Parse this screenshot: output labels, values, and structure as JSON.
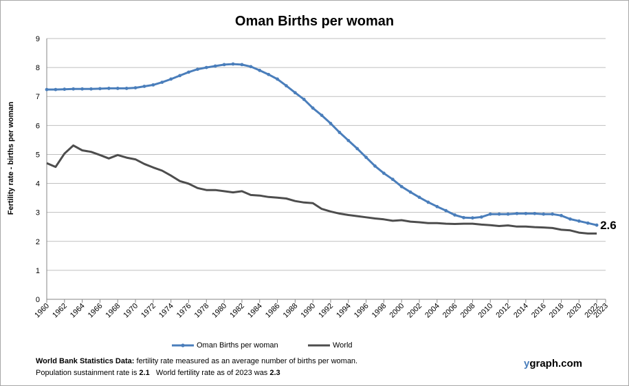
{
  "chart_data": {
    "type": "line",
    "title": "Oman Births per woman",
    "ylabel": "Fertility rate  - births per woman",
    "xlabel": "",
    "ylim": [
      0,
      9
    ],
    "xlim": [
      1960,
      2023
    ],
    "y_ticks": [
      0,
      1,
      2,
      3,
      4,
      5,
      6,
      7,
      8,
      9
    ],
    "x_ticks": [
      1960,
      1962,
      1964,
      1966,
      1968,
      1970,
      1972,
      1974,
      1976,
      1978,
      1980,
      1982,
      1984,
      1986,
      1988,
      1990,
      1992,
      1994,
      1996,
      1998,
      2000,
      2002,
      2004,
      2006,
      2008,
      2010,
      2012,
      2014,
      2016,
      2018,
      2020,
      2022,
      2023
    ],
    "grid": "horizontal",
    "legend_position": "bottom",
    "end_label": "2.6",
    "x": [
      1960,
      1961,
      1962,
      1963,
      1964,
      1965,
      1966,
      1967,
      1968,
      1969,
      1970,
      1971,
      1972,
      1973,
      1974,
      1975,
      1976,
      1977,
      1978,
      1979,
      1980,
      1981,
      1982,
      1983,
      1984,
      1985,
      1986,
      1987,
      1988,
      1989,
      1990,
      1991,
      1992,
      1993,
      1994,
      1995,
      1996,
      1997,
      1998,
      1999,
      2000,
      2001,
      2002,
      2003,
      2004,
      2005,
      2006,
      2007,
      2008,
      2009,
      2010,
      2011,
      2012,
      2013,
      2014,
      2015,
      2016,
      2017,
      2018,
      2019,
      2020,
      2021,
      2022
    ],
    "series": [
      {
        "name": "Oman Births per woman",
        "color": "#4a7ebb",
        "markers": true,
        "values": [
          7.24,
          7.24,
          7.25,
          7.26,
          7.26,
          7.26,
          7.27,
          7.28,
          7.28,
          7.28,
          7.3,
          7.35,
          7.4,
          7.49,
          7.6,
          7.72,
          7.84,
          7.94,
          8.0,
          8.05,
          8.1,
          8.12,
          8.1,
          8.03,
          7.9,
          7.76,
          7.6,
          7.37,
          7.13,
          6.9,
          6.6,
          6.35,
          6.07,
          5.76,
          5.48,
          5.2,
          4.9,
          4.6,
          4.35,
          4.14,
          3.89,
          3.7,
          3.52,
          3.35,
          3.2,
          3.06,
          2.91,
          2.82,
          2.81,
          2.84,
          2.94,
          2.94,
          2.94,
          2.96,
          2.96,
          2.96,
          2.94,
          2.94,
          2.89,
          2.77,
          2.7,
          2.63,
          2.56
        ]
      },
      {
        "name": "World",
        "color": "#4d4d4d",
        "markers": false,
        "values": [
          4.7,
          4.57,
          5.03,
          5.31,
          5.14,
          5.09,
          4.98,
          4.86,
          4.98,
          4.89,
          4.83,
          4.67,
          4.55,
          4.44,
          4.27,
          4.08,
          3.99,
          3.84,
          3.77,
          3.77,
          3.73,
          3.69,
          3.73,
          3.6,
          3.58,
          3.53,
          3.51,
          3.48,
          3.39,
          3.34,
          3.32,
          3.12,
          3.03,
          2.96,
          2.91,
          2.87,
          2.83,
          2.79,
          2.76,
          2.71,
          2.73,
          2.68,
          2.66,
          2.63,
          2.63,
          2.61,
          2.6,
          2.61,
          2.61,
          2.58,
          2.56,
          2.53,
          2.55,
          2.51,
          2.51,
          2.49,
          2.48,
          2.46,
          2.4,
          2.38,
          2.3,
          2.27,
          2.27
        ]
      }
    ]
  },
  "footnote": {
    "source_label": "World Bank Statistics Data:",
    "source_text": " fertility rate measured as an average number  of births per woman.",
    "sustain_text": "Population sustainment rate is ",
    "sustain_value": "2.1",
    "world_text": "   World fertility rate as of 2023 was ",
    "world_value": "2.3"
  },
  "brand": {
    "y": "y",
    "rest": "graph.com"
  }
}
